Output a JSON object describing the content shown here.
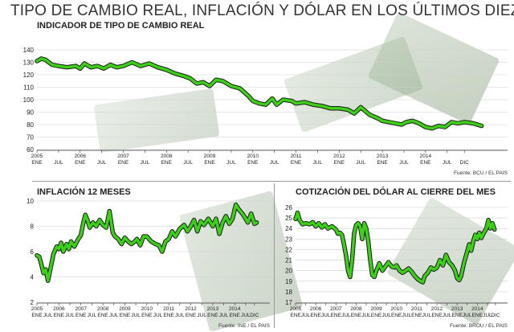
{
  "page": {
    "title": "TIPO DE CAMBIO REAL, INFLACIÓN Y DÓLAR EN LOS ÚLTIMOS DIEZ AÑOS",
    "line_color": "#3dd018",
    "line_outline_color": "#1a1a1a",
    "background_decoration": "dollar-bills"
  },
  "chart_data": [
    {
      "id": "tcr",
      "type": "line",
      "title": "INDICADOR DE TIPO DE CAMBIO REAL",
      "source": "Fuente: BCU / EL PAIS",
      "ylim": [
        60,
        140
      ],
      "yticks": [
        60,
        70,
        80,
        90,
        100,
        110,
        120,
        130,
        140
      ],
      "xlim": [
        0,
        10.9
      ],
      "xticks": [
        {
          "x": 0,
          "labels": [
            "2005",
            "ENE"
          ]
        },
        {
          "x": 0.5,
          "labels": [
            "",
            "JUL"
          ]
        },
        {
          "x": 1,
          "labels": [
            "2006",
            "ENE"
          ]
        },
        {
          "x": 1.5,
          "labels": [
            "",
            "JUL"
          ]
        },
        {
          "x": 2,
          "labels": [
            "2007",
            "ENE"
          ]
        },
        {
          "x": 2.5,
          "labels": [
            "",
            "JUL"
          ]
        },
        {
          "x": 3,
          "labels": [
            "2008",
            "ENE"
          ]
        },
        {
          "x": 3.5,
          "labels": [
            "",
            "JUL"
          ]
        },
        {
          "x": 4,
          "labels": [
            "2009",
            "ENE"
          ]
        },
        {
          "x": 4.5,
          "labels": [
            "",
            "JUL"
          ]
        },
        {
          "x": 5,
          "labels": [
            "2010",
            "ENE"
          ]
        },
        {
          "x": 5.5,
          "labels": [
            "",
            "JUL"
          ]
        },
        {
          "x": 6,
          "labels": [
            "2011",
            "ENE"
          ]
        },
        {
          "x": 6.5,
          "labels": [
            "",
            "JUL"
          ]
        },
        {
          "x": 7,
          "labels": [
            "2012",
            "ENE"
          ]
        },
        {
          "x": 7.5,
          "labels": [
            "",
            "JUL"
          ]
        },
        {
          "x": 8,
          "labels": [
            "2013",
            "ENE"
          ]
        },
        {
          "x": 8.5,
          "labels": [
            "",
            "JUL"
          ]
        },
        {
          "x": 9,
          "labels": [
            "2014",
            "ENE"
          ]
        },
        {
          "x": 9.5,
          "labels": [
            "",
            "JUL"
          ]
        },
        {
          "x": 9.9,
          "labels": [
            "",
            "DIC"
          ]
        }
      ],
      "points": [
        [
          0,
          131
        ],
        [
          0.1,
          133
        ],
        [
          0.2,
          132
        ],
        [
          0.35,
          128
        ],
        [
          0.5,
          127
        ],
        [
          0.7,
          126
        ],
        [
          0.9,
          127
        ],
        [
          1.0,
          125
        ],
        [
          1.1,
          129
        ],
        [
          1.25,
          126
        ],
        [
          1.4,
          127
        ],
        [
          1.55,
          125
        ],
        [
          1.7,
          128
        ],
        [
          1.85,
          126
        ],
        [
          2.0,
          127
        ],
        [
          2.2,
          130
        ],
        [
          2.4,
          127
        ],
        [
          2.6,
          129
        ],
        [
          2.8,
          126
        ],
        [
          3.0,
          124
        ],
        [
          3.2,
          121
        ],
        [
          3.4,
          119
        ],
        [
          3.55,
          117
        ],
        [
          3.7,
          113
        ],
        [
          3.85,
          114
        ],
        [
          4.0,
          111
        ],
        [
          4.15,
          116
        ],
        [
          4.3,
          115
        ],
        [
          4.5,
          111
        ],
        [
          4.7,
          109
        ],
        [
          4.9,
          103
        ],
        [
          5.0,
          99
        ],
        [
          5.15,
          97
        ],
        [
          5.3,
          96
        ],
        [
          5.45,
          101
        ],
        [
          5.55,
          96
        ],
        [
          5.7,
          100
        ],
        [
          5.9,
          99
        ],
        [
          6.0,
          97
        ],
        [
          6.2,
          98
        ],
        [
          6.4,
          96
        ],
        [
          6.6,
          95
        ],
        [
          6.8,
          93
        ],
        [
          7.0,
          93
        ],
        [
          7.2,
          92
        ],
        [
          7.35,
          89
        ],
        [
          7.5,
          94
        ],
        [
          7.7,
          88
        ],
        [
          7.9,
          85
        ],
        [
          8.0,
          83
        ],
        [
          8.15,
          82
        ],
        [
          8.3,
          81
        ],
        [
          8.45,
          80
        ],
        [
          8.55,
          82
        ],
        [
          8.7,
          83
        ],
        [
          8.85,
          81
        ],
        [
          9.0,
          78
        ],
        [
          9.15,
          77
        ],
        [
          9.3,
          79
        ],
        [
          9.45,
          78
        ],
        [
          9.6,
          82
        ],
        [
          9.75,
          81
        ],
        [
          9.9,
          82
        ],
        [
          10.1,
          81
        ],
        [
          10.2,
          80
        ],
        [
          10.3,
          79
        ]
      ]
    },
    {
      "id": "inflacion",
      "type": "line",
      "title": "INFLACIÓN 12 MESES",
      "source": "Fuente: INE / EL PAIS",
      "ylim": [
        2,
        10
      ],
      "yticks": [
        2,
        4,
        6,
        8,
        10
      ],
      "xlim": [
        0,
        10.6
      ],
      "xticks": [
        {
          "x": 0,
          "labels": [
            "2005",
            "ENE"
          ]
        },
        {
          "x": 0.5,
          "labels": [
            "",
            "JUL"
          ]
        },
        {
          "x": 1,
          "labels": [
            "2006",
            "ENE"
          ]
        },
        {
          "x": 1.5,
          "labels": [
            "",
            "JUL"
          ]
        },
        {
          "x": 2,
          "labels": [
            "2007",
            "ENE"
          ]
        },
        {
          "x": 2.5,
          "labels": [
            "",
            "JUL"
          ]
        },
        {
          "x": 3,
          "labels": [
            "2008",
            "ENE"
          ]
        },
        {
          "x": 3.5,
          "labels": [
            "",
            "JUL"
          ]
        },
        {
          "x": 4,
          "labels": [
            "2009",
            "ENE"
          ]
        },
        {
          "x": 4.5,
          "labels": [
            "",
            "JUL"
          ]
        },
        {
          "x": 5,
          "labels": [
            "2010",
            "ENE"
          ]
        },
        {
          "x": 5.5,
          "labels": [
            "",
            "JUL"
          ]
        },
        {
          "x": 6,
          "labels": [
            "2011",
            "ENE"
          ]
        },
        {
          "x": 6.5,
          "labels": [
            "",
            "JUL"
          ]
        },
        {
          "x": 7,
          "labels": [
            "2012",
            "ENE"
          ]
        },
        {
          "x": 7.5,
          "labels": [
            "",
            "JUL"
          ]
        },
        {
          "x": 8,
          "labels": [
            "2013",
            "ENE"
          ]
        },
        {
          "x": 8.5,
          "labels": [
            "",
            "JUL"
          ]
        },
        {
          "x": 9,
          "labels": [
            "2014",
            "ENE"
          ]
        },
        {
          "x": 9.5,
          "labels": [
            "",
            "JUL"
          ]
        },
        {
          "x": 9.9,
          "labels": [
            "",
            "DIC"
          ]
        }
      ],
      "points": [
        [
          0,
          5.7
        ],
        [
          0.1,
          5.6
        ],
        [
          0.2,
          5.0
        ],
        [
          0.3,
          4.3
        ],
        [
          0.4,
          4.6
        ],
        [
          0.5,
          3.7
        ],
        [
          0.6,
          4.5
        ],
        [
          0.75,
          5.8
        ],
        [
          0.9,
          6.4
        ],
        [
          1.0,
          6.2
        ],
        [
          1.1,
          6.7
        ],
        [
          1.2,
          6.0
        ],
        [
          1.35,
          6.6
        ],
        [
          1.45,
          6.2
        ],
        [
          1.55,
          6.8
        ],
        [
          1.7,
          6.4
        ],
        [
          1.85,
          6.9
        ],
        [
          2.0,
          7.3
        ],
        [
          2.1,
          8.2
        ],
        [
          2.2,
          8.9
        ],
        [
          2.3,
          8.5
        ],
        [
          2.4,
          7.9
        ],
        [
          2.55,
          8.3
        ],
        [
          2.7,
          8.0
        ],
        [
          2.85,
          8.5
        ],
        [
          3.0,
          8.1
        ],
        [
          3.15,
          7.9
        ],
        [
          3.3,
          9.2
        ],
        [
          3.45,
          7.5
        ],
        [
          3.55,
          7.2
        ],
        [
          3.7,
          7.0
        ],
        [
          3.85,
          6.6
        ],
        [
          4.0,
          7.1
        ],
        [
          4.15,
          6.8
        ],
        [
          4.3,
          6.6
        ],
        [
          4.45,
          6.8
        ],
        [
          4.55,
          7.0
        ],
        [
          4.7,
          6.5
        ],
        [
          4.85,
          7.2
        ],
        [
          5.0,
          7.2
        ],
        [
          5.2,
          6.8
        ],
        [
          5.4,
          6.6
        ],
        [
          5.55,
          6.5
        ],
        [
          5.7,
          6.0
        ],
        [
          5.85,
          6.8
        ],
        [
          6.0,
          7.0
        ],
        [
          6.15,
          7.6
        ],
        [
          6.3,
          7.2
        ],
        [
          6.5,
          7.8
        ],
        [
          6.7,
          8.1
        ],
        [
          6.85,
          7.6
        ],
        [
          7.0,
          8.0
        ],
        [
          7.15,
          8.5
        ],
        [
          7.3,
          7.6
        ],
        [
          7.45,
          8.4
        ],
        [
          7.6,
          8.1
        ],
        [
          7.8,
          8.6
        ],
        [
          8.0,
          8.0
        ],
        [
          8.15,
          8.6
        ],
        [
          8.3,
          7.4
        ],
        [
          8.45,
          8.3
        ],
        [
          8.6,
          8.8
        ],
        [
          8.75,
          8.2
        ],
        [
          8.9,
          8.6
        ],
        [
          9.05,
          9.7
        ],
        [
          9.2,
          9.3
        ],
        [
          9.35,
          9.0
        ],
        [
          9.5,
          8.6
        ],
        [
          9.6,
          8.3
        ],
        [
          9.75,
          9.0
        ],
        [
          9.9,
          8.2
        ],
        [
          10.0,
          8.3
        ]
      ]
    },
    {
      "id": "dolar",
      "type": "line",
      "title": "COTIZACIÓN DEL DÓLAR AL CIERRE DEL MES",
      "source": "Fuente: BROU / EL PAIS",
      "ylim": [
        17,
        26
      ],
      "yticks": [
        17,
        18,
        19,
        20,
        21,
        22,
        23,
        24,
        25,
        26
      ],
      "xlim": [
        0,
        10.5
      ],
      "xticks": [
        {
          "x": 0,
          "labels": [
            "2005",
            "ENE"
          ]
        },
        {
          "x": 0.5,
          "labels": [
            "",
            "JUL"
          ]
        },
        {
          "x": 1,
          "labels": [
            "2006",
            "ENE"
          ]
        },
        {
          "x": 1.5,
          "labels": [
            "",
            "JUL"
          ]
        },
        {
          "x": 2,
          "labels": [
            "2007",
            "ENE"
          ]
        },
        {
          "x": 2.5,
          "labels": [
            "",
            "JUL"
          ]
        },
        {
          "x": 3,
          "labels": [
            "2008",
            "ENE"
          ]
        },
        {
          "x": 3.5,
          "labels": [
            "",
            "JUL"
          ]
        },
        {
          "x": 4,
          "labels": [
            "2009",
            "ENE"
          ]
        },
        {
          "x": 4.5,
          "labels": [
            "",
            "JUL"
          ]
        },
        {
          "x": 5,
          "labels": [
            "2010",
            "ENE"
          ]
        },
        {
          "x": 5.5,
          "labels": [
            "",
            "JUL"
          ]
        },
        {
          "x": 6,
          "labels": [
            "2011",
            "ENE"
          ]
        },
        {
          "x": 6.5,
          "labels": [
            "",
            "JUL"
          ]
        },
        {
          "x": 7,
          "labels": [
            "2012",
            "ENE"
          ]
        },
        {
          "x": 7.5,
          "labels": [
            "",
            "JUL"
          ]
        },
        {
          "x": 8,
          "labels": [
            "2013",
            "ENE"
          ]
        },
        {
          "x": 8.5,
          "labels": [
            "",
            "JUL"
          ]
        },
        {
          "x": 9,
          "labels": [
            "2014",
            "ENE"
          ]
        },
        {
          "x": 9.5,
          "labels": [
            "",
            "JUL"
          ]
        },
        {
          "x": 9.9,
          "labels": [
            "",
            "DIC"
          ]
        }
      ],
      "points": [
        [
          0,
          24.9
        ],
        [
          0.1,
          25.5
        ],
        [
          0.2,
          24.8
        ],
        [
          0.35,
          24.4
        ],
        [
          0.5,
          24.5
        ],
        [
          0.7,
          24.4
        ],
        [
          0.85,
          24.6
        ],
        [
          1.0,
          24.2
        ],
        [
          1.15,
          24.5
        ],
        [
          1.3,
          24.1
        ],
        [
          1.45,
          24.4
        ],
        [
          1.6,
          24.0
        ],
        [
          1.8,
          24.2
        ],
        [
          2.0,
          23.9
        ],
        [
          2.1,
          23.5
        ],
        [
          2.2,
          23.6
        ],
        [
          2.3,
          23.4
        ],
        [
          2.4,
          22.5
        ],
        [
          2.5,
          21.4
        ],
        [
          2.6,
          20.0
        ],
        [
          2.7,
          19.4
        ],
        [
          2.8,
          21.0
        ],
        [
          2.9,
          23.5
        ],
        [
          3.0,
          24.3
        ],
        [
          3.1,
          24.5
        ],
        [
          3.2,
          24.2
        ],
        [
          3.3,
          23.0
        ],
        [
          3.4,
          24.5
        ],
        [
          3.5,
          24.0
        ],
        [
          3.6,
          22.8
        ],
        [
          3.7,
          21.0
        ],
        [
          3.8,
          19.6
        ],
        [
          3.9,
          19.4
        ],
        [
          4.0,
          20.0
        ],
        [
          4.15,
          20.7
        ],
        [
          4.3,
          20.0
        ],
        [
          4.45,
          20.4
        ],
        [
          4.6,
          20.8
        ],
        [
          4.75,
          20.4
        ],
        [
          4.9,
          20.3
        ],
        [
          5.0,
          20.5
        ],
        [
          5.15,
          20.0
        ],
        [
          5.3,
          19.8
        ],
        [
          5.45,
          20.0
        ],
        [
          5.6,
          20.2
        ],
        [
          5.75,
          19.9
        ],
        [
          5.9,
          19.5
        ],
        [
          6.05,
          19.2
        ],
        [
          6.2,
          19.0
        ],
        [
          6.3,
          18.9
        ],
        [
          6.4,
          19.5
        ],
        [
          6.55,
          19.8
        ],
        [
          6.7,
          20.3
        ],
        [
          6.85,
          20.1
        ],
        [
          7.0,
          20.3
        ],
        [
          7.15,
          21.0
        ],
        [
          7.3,
          20.5
        ],
        [
          7.45,
          21.5
        ],
        [
          7.6,
          20.8
        ],
        [
          7.75,
          20.5
        ],
        [
          7.9,
          20.0
        ],
        [
          8.0,
          19.3
        ],
        [
          8.1,
          19.1
        ],
        [
          8.2,
          19.5
        ],
        [
          8.35,
          20.8
        ],
        [
          8.5,
          21.8
        ],
        [
          8.6,
          22.5
        ],
        [
          8.7,
          21.9
        ],
        [
          8.8,
          22.8
        ],
        [
          8.9,
          23.4
        ],
        [
          9.0,
          23.0
        ],
        [
          9.1,
          23.6
        ],
        [
          9.2,
          23.1
        ],
        [
          9.3,
          23.5
        ],
        [
          9.45,
          24.0
        ],
        [
          9.55,
          24.8
        ],
        [
          9.65,
          24.0
        ],
        [
          9.75,
          24.5
        ],
        [
          9.85,
          23.9
        ]
      ]
    }
  ]
}
